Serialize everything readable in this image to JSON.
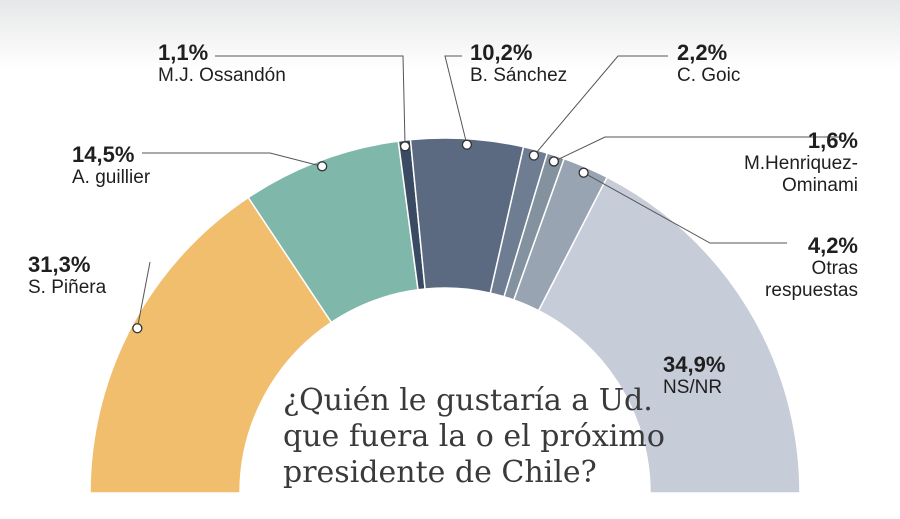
{
  "chart_data": {
    "type": "pie",
    "title": "",
    "question": "¿Quién le gustaría a Ud.\nque fuera la o el próximo\npresidente de Chile?",
    "slices": [
      {
        "label": "S. Piñera",
        "value": 31.3,
        "display": "31,3%",
        "color": "#f0be6c"
      },
      {
        "label": "A. guillier",
        "value": 14.5,
        "display": "14,5%",
        "color": "#7fb7ab"
      },
      {
        "label": "M.J. Ossandón",
        "value": 1.1,
        "display": "1,1%",
        "color": "#3a4a63"
      },
      {
        "label": "B. Sánchez",
        "value": 10.2,
        "display": "10,2%",
        "color": "#5b6a80"
      },
      {
        "label": "C. Goic",
        "value": 2.2,
        "display": "2,2%",
        "color": "#6e7d91"
      },
      {
        "label": "M.Henriquez-\nOminami",
        "value": 1.6,
        "display": "1,6%",
        "color": "#84919f"
      },
      {
        "label": "Otras\nrespuestas",
        "value": 4.2,
        "display": "4,2%",
        "color": "#99a4b2"
      },
      {
        "label": "NS/NR",
        "value": 34.9,
        "display": "34,9%",
        "color": "#c6ccd8"
      }
    ]
  }
}
